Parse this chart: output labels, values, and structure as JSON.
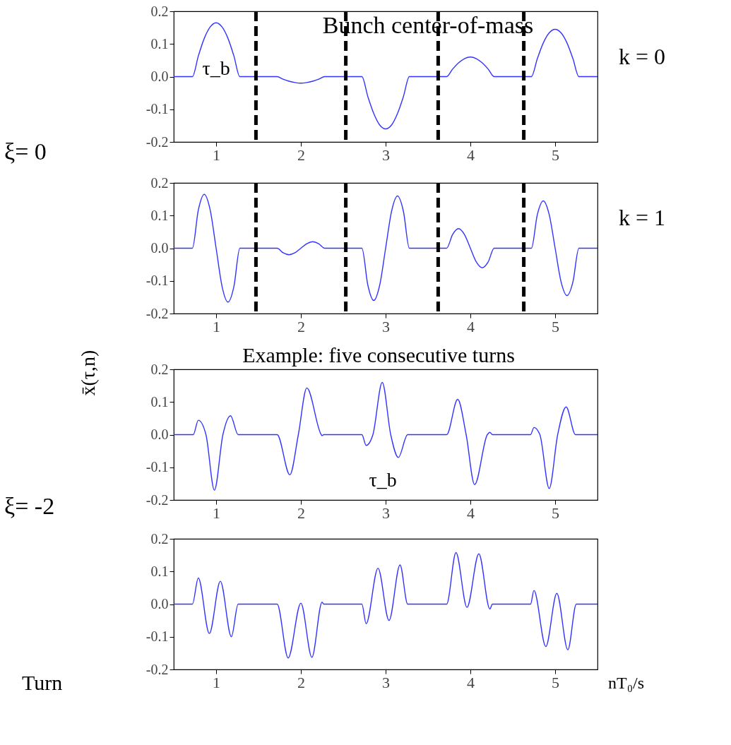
{
  "chart_data": [
    {
      "type": "line",
      "xlim": [
        0.5,
        5.5
      ],
      "ylim": [
        -0.2,
        0.2
      ],
      "xticks": [
        1,
        2,
        3,
        4,
        5
      ],
      "yticks": [
        {
          "value": -0.2,
          "label": "-0.2"
        },
        {
          "value": -0.1,
          "label": "-0.1"
        },
        {
          "value": 0,
          "label": "0.0"
        },
        {
          "value": 0.1,
          "label": "0.1"
        },
        {
          "value": 0.2,
          "label": "0.2"
        }
      ],
      "grid": false,
      "x": [
        0.5,
        0.72,
        0.79,
        0.86,
        0.93,
        1,
        1.07,
        1.14,
        1.21,
        1.28,
        1.72,
        1.79,
        1.86,
        1.93,
        2,
        2.07,
        2.14,
        2.21,
        2.28,
        2.72,
        2.79,
        2.86,
        2.93,
        3,
        3.07,
        3.14,
        3.21,
        3.28,
        3.72,
        3.79,
        3.86,
        3.93,
        4,
        4.07,
        4.14,
        4.21,
        4.28,
        4.72,
        4.79,
        4.86,
        4.93,
        5,
        5.07,
        5.14,
        5.21,
        5.28,
        5.5
      ],
      "series": [
        {
          "color": "#3333ff",
          "values": [
            0,
            0,
            0.063,
            0.117,
            0.152,
            0.165,
            0.152,
            0.117,
            0.063,
            0,
            0,
            -0.008,
            -0.014,
            -0.018,
            -0.02,
            -0.018,
            -0.014,
            -0.008,
            0,
            0,
            -0.061,
            -0.113,
            -0.148,
            -0.16,
            -0.148,
            -0.113,
            -0.061,
            0,
            0,
            0.023,
            0.042,
            0.055,
            0.06,
            0.055,
            0.042,
            0.023,
            0,
            0,
            0.055,
            0.103,
            0.134,
            0.145,
            0.134,
            0.103,
            0.055,
            0,
            0
          ]
        }
      ],
      "ref_lines": [
        {
          "axis": "x",
          "value": 1.47,
          "color": "#000000",
          "line_style": "dashed"
        },
        {
          "axis": "x",
          "value": 2.53,
          "color": "#000000",
          "line_style": "dashed"
        },
        {
          "axis": "x",
          "value": 3.62,
          "color": "#000000",
          "line_style": "dashed"
        },
        {
          "axis": "x",
          "value": 4.63,
          "color": "#000000",
          "line_style": "dashed"
        }
      ],
      "annotations": [
        "Bunch center-of-mass",
        "k = 0",
        "τ_b",
        "ξ= 0"
      ]
    },
    {
      "type": "line",
      "xlim": [
        0.5,
        5.5
      ],
      "ylim": [
        -0.2,
        0.2
      ],
      "xticks": [
        1,
        2,
        3,
        4,
        5
      ],
      "yticks": [
        {
          "value": -0.2,
          "label": "-0.2"
        },
        {
          "value": -0.1,
          "label": "-0.1"
        },
        {
          "value": 0,
          "label": "0.0"
        },
        {
          "value": 0.1,
          "label": "0.1"
        },
        {
          "value": 0.2,
          "label": "0.2"
        }
      ],
      "grid": false,
      "x": [
        0.5,
        0.72,
        0.79,
        0.86,
        0.93,
        1,
        1.07,
        1.14,
        1.21,
        1.28,
        1.72,
        1.79,
        1.86,
        1.93,
        2,
        2.07,
        2.14,
        2.21,
        2.28,
        2.72,
        2.79,
        2.86,
        2.93,
        3,
        3.07,
        3.14,
        3.21,
        3.28,
        3.72,
        3.79,
        3.86,
        3.93,
        4,
        4.07,
        4.14,
        4.21,
        4.28,
        4.72,
        4.79,
        4.86,
        4.93,
        5,
        5.07,
        5.14,
        5.21,
        5.28,
        5.5
      ],
      "series": [
        {
          "color": "#3333ff",
          "values": [
            0,
            0,
            0.117,
            0.165,
            0.117,
            0,
            -0.117,
            -0.165,
            -0.117,
            0,
            0,
            -0.014,
            -0.02,
            -0.014,
            0,
            0.014,
            0.02,
            0.014,
            0,
            0,
            -0.113,
            -0.16,
            -0.113,
            0,
            0.113,
            0.16,
            0.113,
            0,
            0,
            0.042,
            0.06,
            0.042,
            0,
            -0.042,
            -0.06,
            -0.042,
            0,
            0,
            0.103,
            0.145,
            0.103,
            0,
            -0.103,
            -0.145,
            -0.103,
            0,
            0
          ]
        }
      ],
      "ref_lines": [
        {
          "axis": "x",
          "value": 1.47,
          "color": "#000000",
          "line_style": "dashed"
        },
        {
          "axis": "x",
          "value": 2.53,
          "color": "#000000",
          "line_style": "dashed"
        },
        {
          "axis": "x",
          "value": 3.62,
          "color": "#000000",
          "line_style": "dashed"
        },
        {
          "axis": "x",
          "value": 4.63,
          "color": "#000000",
          "line_style": "dashed"
        }
      ],
      "annotations": [
        "k = 1"
      ]
    },
    {
      "type": "line",
      "xlim": [
        0.5,
        5.5
      ],
      "ylim": [
        -0.2,
        0.2
      ],
      "xticks": [
        1,
        2,
        3,
        4,
        5
      ],
      "yticks": [
        {
          "value": -0.2,
          "label": "-0.2"
        },
        {
          "value": -0.1,
          "label": "-0.1"
        },
        {
          "value": 0,
          "label": "0.0"
        },
        {
          "value": 0.1,
          "label": "0.1"
        },
        {
          "value": 0.2,
          "label": "0.2"
        }
      ],
      "grid": false,
      "ylabel": "x̄(τ,n)",
      "x": [
        0.5,
        0.73,
        0.79,
        0.88,
        0.98,
        1.08,
        1.17,
        1.26,
        1.72,
        1.87,
        1.97,
        2.07,
        2.24,
        2.25,
        2.27,
        2.72,
        2.77,
        2.85,
        2.96,
        3.06,
        3.15,
        3.26,
        3.72,
        3.85,
        3.95,
        4.05,
        4.2,
        4.23,
        4.26,
        4.71,
        4.75,
        4.82,
        4.93,
        5.03,
        5.13,
        5.24,
        5.5
      ],
      "series": [
        {
          "color": "#3333ff",
          "values": [
            0,
            0,
            0.044,
            0,
            -0.17,
            0,
            0.058,
            0,
            0,
            -0.123,
            0,
            0.143,
            0,
            -0.003,
            0,
            0,
            -0.033,
            0,
            0.16,
            0,
            -0.07,
            0,
            0,
            0.108,
            0,
            -0.153,
            0,
            0.007,
            0,
            0,
            0.022,
            0,
            -0.165,
            0,
            0.085,
            0,
            0
          ]
        }
      ],
      "annotations": [
        "Example: five consecutive turns",
        "τ_b",
        "ξ= -2"
      ]
    },
    {
      "type": "line",
      "xlim": [
        0.5,
        5.5
      ],
      "ylim": [
        -0.2,
        0.2
      ],
      "xticks": [
        1,
        2,
        3,
        4,
        5
      ],
      "yticks": [
        {
          "value": -0.2,
          "label": "-0.2"
        },
        {
          "value": -0.1,
          "label": "-0.1"
        },
        {
          "value": 0,
          "label": "0.0"
        },
        {
          "value": 0.1,
          "label": "0.1"
        },
        {
          "value": 0.2,
          "label": "0.2"
        }
      ],
      "grid": false,
      "x": [
        0.5,
        0.72,
        0.79,
        0.92,
        1.05,
        1.18,
        1.26,
        1.72,
        1.85,
        2.0,
        2.13,
        2.25,
        2.27,
        2.72,
        2.77,
        2.91,
        3.04,
        3.17,
        3.26,
        3.72,
        3.83,
        3.96,
        4.1,
        4.23,
        4.26,
        4.71,
        4.75,
        4.89,
        5.02,
        5.15,
        5.25,
        5.5
      ],
      "series": [
        {
          "color": "#3333ff",
          "values": [
            0,
            0,
            0.08,
            -0.09,
            0.07,
            -0.1,
            0,
            0,
            -0.165,
            0.003,
            -0.163,
            0.006,
            0,
            0,
            -0.06,
            0.11,
            -0.05,
            0.12,
            0,
            0,
            0.158,
            -0.01,
            0.154,
            -0.015,
            0,
            0,
            0.042,
            -0.13,
            0.033,
            -0.14,
            0,
            0
          ]
        }
      ],
      "annotations": [
        "Turn",
        "nT₀/s"
      ]
    }
  ]
}
